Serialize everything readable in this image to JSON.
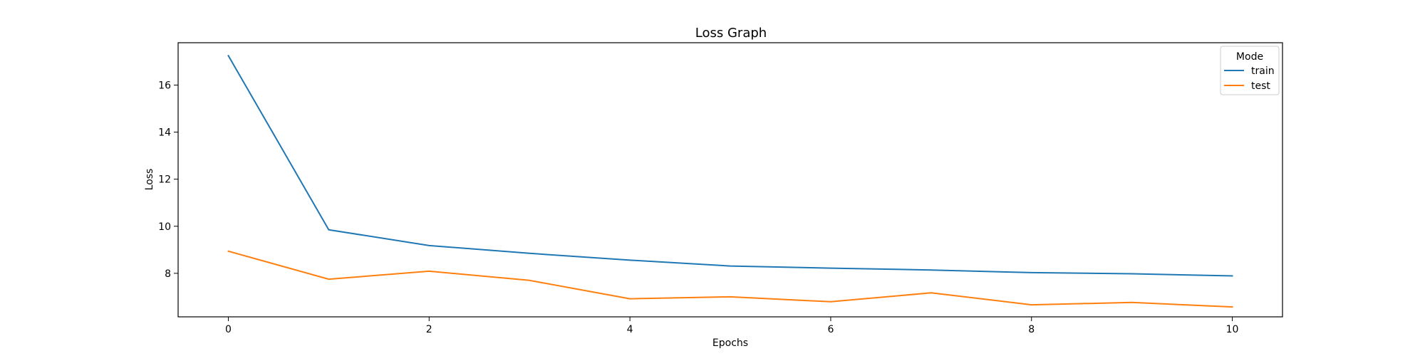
{
  "chart_data": {
    "type": "line",
    "title": "Loss Graph",
    "xlabel": "Epochs",
    "ylabel": "Loss",
    "x": [
      0,
      1,
      2,
      3,
      4,
      5,
      6,
      7,
      8,
      9,
      10
    ],
    "series": [
      {
        "name": "train",
        "color": "#1f77b4",
        "values": [
          17.25,
          9.85,
          9.18,
          8.85,
          8.56,
          8.31,
          8.22,
          8.14,
          8.03,
          7.98,
          7.89
        ]
      },
      {
        "name": "test",
        "color": "#ff7f0e",
        "values": [
          8.94,
          7.75,
          8.09,
          7.7,
          6.92,
          7.0,
          6.79,
          7.17,
          6.66,
          6.76,
          6.57
        ]
      }
    ],
    "xlim": [
      -0.5,
      10.5
    ],
    "ylim": [
      6.15,
      17.8
    ],
    "xticks": [
      0,
      2,
      4,
      6,
      8,
      10
    ],
    "yticks": [
      8,
      10,
      12,
      14,
      16
    ],
    "grid": false,
    "legend": {
      "title": "Mode",
      "position": "top-right"
    }
  }
}
